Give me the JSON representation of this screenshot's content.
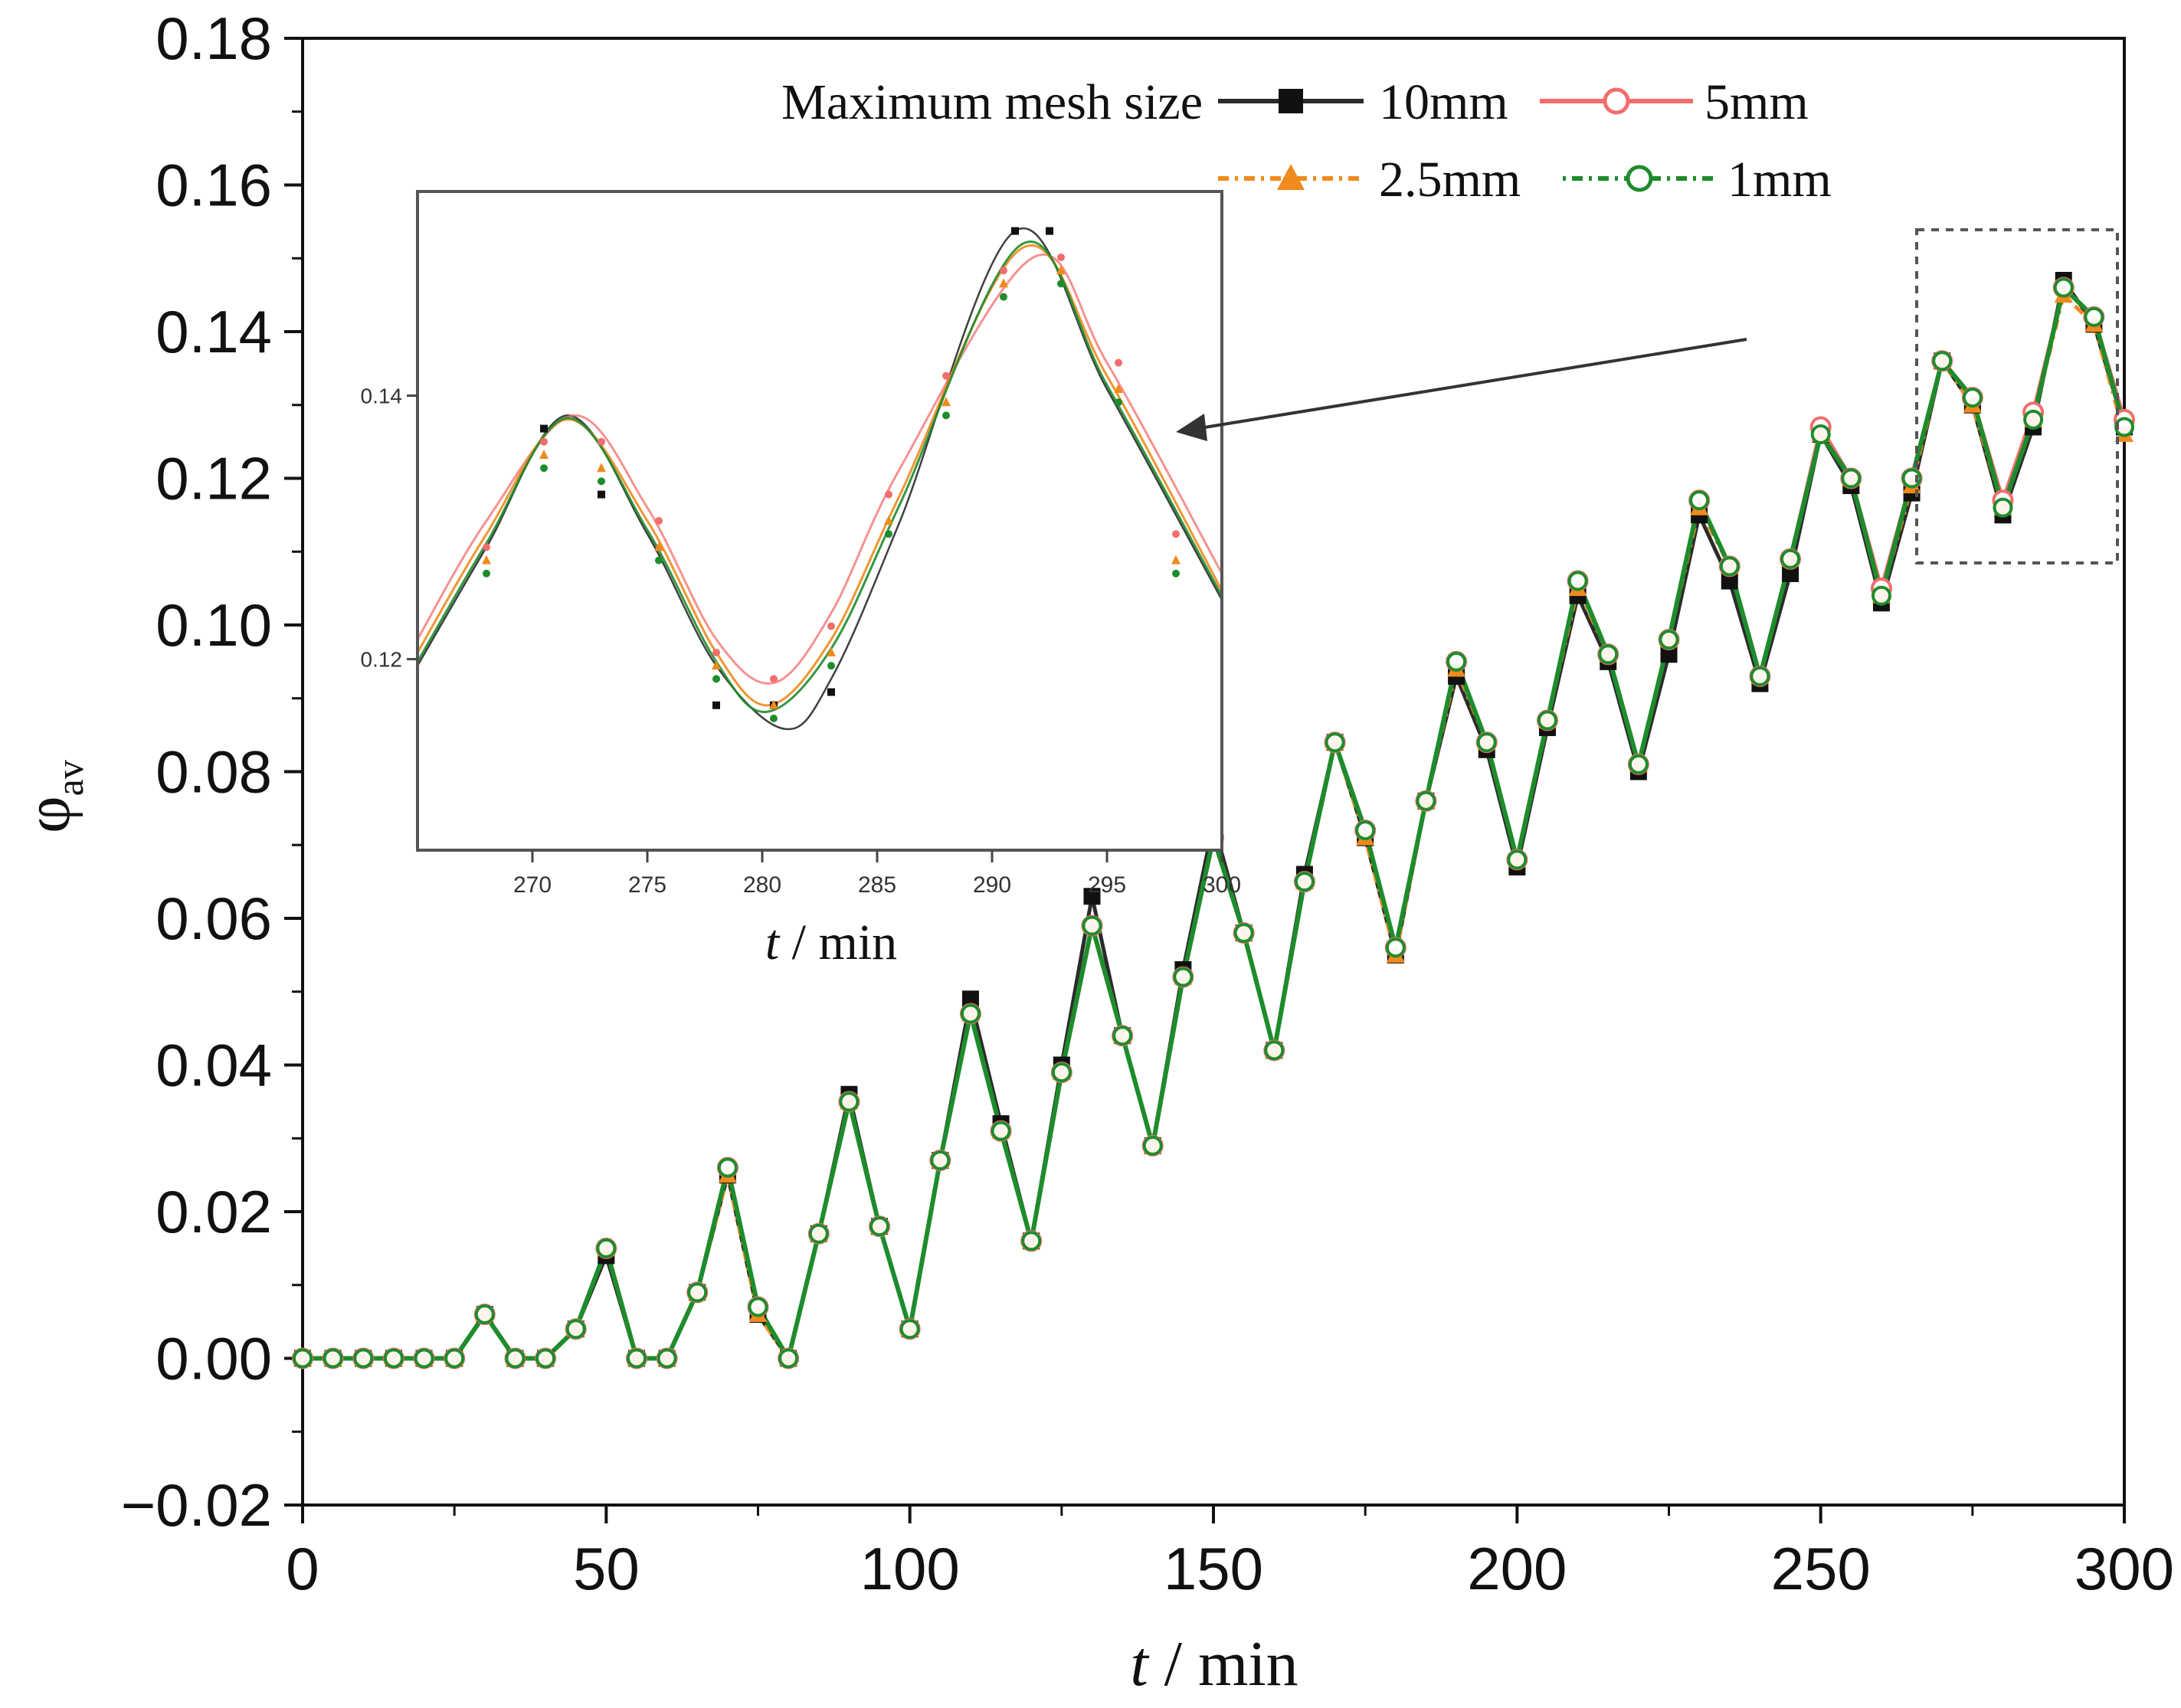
{
  "chart_data": [
    {
      "type": "line",
      "title": "",
      "xlabel_italic": "t",
      "xlabel_rest": " / min",
      "ylabel": "φ",
      "ylabel_sub": "av",
      "xlim": [
        0,
        300
      ],
      "ylim": [
        -0.02,
        0.18
      ],
      "x_ticks": [
        0,
        50,
        100,
        150,
        200,
        250,
        300
      ],
      "x_tick_labels": [
        "0",
        "50",
        "100",
        "150",
        "200",
        "250",
        "300"
      ],
      "y_ticks": [
        -0.02,
        0.0,
        0.02,
        0.04,
        0.06,
        0.08,
        0.1,
        0.12,
        0.14,
        0.16,
        0.18
      ],
      "y_tick_labels": [
        "−0.02",
        "0.00",
        "0.02",
        "0.04",
        "0.06",
        "0.08",
        "0.10",
        "0.12",
        "0.14",
        "0.16",
        "0.18"
      ],
      "legend_title": "Maximum mesh size",
      "legend_position": "top-right",
      "x": [
        0,
        5,
        10,
        15,
        20,
        25,
        30,
        35,
        40,
        45,
        50,
        55,
        60,
        65,
        70,
        75,
        80,
        85,
        90,
        95,
        100,
        105,
        110,
        115,
        120,
        125,
        130,
        135,
        140,
        145,
        150,
        155,
        160,
        165,
        170,
        175,
        180,
        185,
        190,
        195,
        200,
        205,
        210,
        215,
        220,
        225,
        230,
        235,
        240,
        245,
        250,
        255,
        260,
        265,
        270,
        275,
        280,
        285,
        290,
        295,
        300
      ],
      "series": [
        {
          "name": "10mm",
          "color": "#2b2b2b",
          "marker": "filled-square",
          "values": [
            0,
            0,
            0,
            0,
            0,
            0,
            0.006,
            0,
            0,
            0.004,
            0.014,
            0,
            0,
            0.009,
            0.025,
            0.006,
            0,
            0.017,
            0.036,
            0.018,
            0.004,
            0.027,
            0.049,
            0.032,
            0.016,
            0.04,
            0.063,
            0.044,
            0.029,
            0.053,
            0.073,
            0.058,
            0.042,
            0.066,
            0.084,
            0.071,
            0.055,
            0.076,
            0.093,
            0.083,
            0.067,
            0.086,
            0.104,
            0.095,
            0.08,
            0.096,
            0.115,
            0.106,
            0.092,
            0.107,
            0.126,
            0.119,
            0.103,
            0.118,
            0.136,
            0.13,
            0.115,
            0.127,
            0.147,
            0.141,
            0.127
          ]
        },
        {
          "name": "5mm",
          "color": "#f26d6d",
          "marker": "open-circle",
          "values": [
            0,
            0,
            0,
            0,
            0,
            0,
            0.006,
            0,
            0,
            0.004,
            0.015,
            0,
            0,
            0.009,
            0.026,
            0.007,
            0,
            0.017,
            0.035,
            0.018,
            0.004,
            0.027,
            0.047,
            0.031,
            0.016,
            0.039,
            0.059,
            0.044,
            0.029,
            0.052,
            0.071,
            0.058,
            0.042,
            0.065,
            0.084,
            0.072,
            0.056,
            0.076,
            0.095,
            0.084,
            0.068,
            0.087,
            0.106,
            0.096,
            0.081,
            0.098,
            0.117,
            0.108,
            0.093,
            0.109,
            0.127,
            0.12,
            0.105,
            0.12,
            0.136,
            0.131,
            0.117,
            0.129,
            0.146,
            0.142,
            0.128
          ]
        },
        {
          "name": "2.5mm",
          "color": "#f08a1c",
          "marker": "filled-triangle",
          "values": [
            0,
            0,
            0,
            0,
            0,
            0,
            0.006,
            0,
            0,
            0.004,
            0.015,
            0,
            0,
            0.009,
            0.025,
            0.006,
            0,
            0.017,
            0.035,
            0.018,
            0.004,
            0.027,
            0.047,
            0.031,
            0.016,
            0.039,
            0.059,
            0.044,
            0.029,
            0.052,
            0.071,
            0.058,
            0.042,
            0.065,
            0.084,
            0.071,
            0.055,
            0.076,
            0.094,
            0.084,
            0.068,
            0.087,
            0.105,
            0.096,
            0.081,
            0.098,
            0.116,
            0.108,
            0.093,
            0.109,
            0.126,
            0.12,
            0.104,
            0.119,
            0.136,
            0.13,
            0.116,
            0.128,
            0.145,
            0.141,
            0.126
          ]
        },
        {
          "name": "1mm",
          "color": "#1e8c2c",
          "marker": "open-circle",
          "values": [
            0,
            0,
            0,
            0,
            0,
            0,
            0.006,
            0,
            0,
            0.004,
            0.015,
            0,
            0,
            0.009,
            0.026,
            0.007,
            0,
            0.017,
            0.035,
            0.018,
            0.004,
            0.027,
            0.047,
            0.031,
            0.016,
            0.039,
            0.059,
            0.044,
            0.029,
            0.052,
            0.071,
            0.058,
            0.042,
            0.065,
            0.084,
            0.072,
            0.056,
            0.076,
            0.095,
            0.084,
            0.068,
            0.087,
            0.106,
            0.096,
            0.081,
            0.098,
            0.117,
            0.108,
            0.093,
            0.109,
            0.126,
            0.12,
            0.104,
            0.12,
            0.136,
            0.131,
            0.116,
            0.128,
            0.146,
            0.142,
            0.127
          ]
        }
      ],
      "annotation": "dashed box marks the region 265–300 min, 0.11–0.15, magnified in the inset"
    },
    {
      "type": "line",
      "role": "inset zoom",
      "xlabel_italic": "t",
      "xlabel_rest": " / min",
      "xlim": [
        265,
        300
      ],
      "ylim": [
        0.1055,
        0.1555
      ],
      "x_ticks": [
        270,
        275,
        280,
        285,
        290,
        295,
        300
      ],
      "x_tick_labels": [
        "270",
        "275",
        "280",
        "285",
        "290",
        "295",
        "300"
      ],
      "y_ticks": [
        0.12,
        0.14
      ],
      "y_tick_labels": [
        "0.12",
        "0.14"
      ],
      "series": [
        {
          "name": "10mm",
          "color": "#2b2b2b",
          "curve": {
            "x": [
              265,
              268,
              271.5,
              275,
              278,
              281,
              283,
              286,
              291,
              295,
              300
            ],
            "y": [
              0.1195,
              0.1285,
              0.1385,
              0.1295,
              0.1195,
              0.1147,
              0.1185,
              0.1305,
              0.1525,
              0.1405,
              0.1245
            ]
          },
          "markers": {
            "x": [
              270.5,
              273,
              278,
              280.5,
              283,
              291,
              292.5
            ],
            "y": [
              0.1375,
              0.1325,
              0.1165,
              0.1165,
              0.1175,
              0.1525,
              0.1525
            ]
          }
        },
        {
          "name": "5mm",
          "color": "#f26d6d",
          "curve": {
            "x": [
              265,
              268,
              271.8,
              275,
              278,
              280.5,
              283,
              286,
              291.8,
              295,
              300
            ],
            "y": [
              0.1215,
              0.1305,
              0.1385,
              0.1315,
              0.1215,
              0.1182,
              0.1235,
              0.1345,
              0.1505,
              0.1425,
              0.1265
            ]
          },
          "markers": {
            "x": [
              268,
              270.5,
              273,
              275.5,
              278,
              280.5,
              283,
              285.5,
              288,
              290.5,
              293,
              295.5,
              298
            ],
            "y": [
              0.1285,
              0.1365,
              0.1365,
              0.1305,
              0.1205,
              0.1185,
              0.1225,
              0.1325,
              0.1415,
              0.1495,
              0.1505,
              0.1425,
              0.1295
            ]
          }
        },
        {
          "name": "2.5mm",
          "color": "#f08a1c",
          "curve": {
            "x": [
              265,
              268,
              271.5,
              275,
              278,
              280.3,
              283,
              286,
              291.3,
              295,
              300
            ],
            "y": [
              0.1205,
              0.1295,
              0.1382,
              0.1305,
              0.1205,
              0.1165,
              0.1215,
              0.1325,
              0.1512,
              0.1415,
              0.1252
            ]
          },
          "markers": {
            "x": [
              268,
              270.5,
              273,
              275.5,
              278,
              280.5,
              283,
              285.5,
              288,
              290.5,
              293,
              295.5,
              298
            ],
            "y": [
              0.1275,
              0.1355,
              0.1345,
              0.1285,
              0.1195,
              0.1165,
              0.1205,
              0.1305,
              0.1395,
              0.1485,
              0.1495,
              0.1405,
              0.1275
            ]
          }
        },
        {
          "name": "1mm",
          "color": "#1e8c2c",
          "curve": {
            "x": [
              265,
              268,
              271.5,
              275,
              278,
              280.2,
              283,
              286,
              291.3,
              295,
              300
            ],
            "y": [
              0.1198,
              0.1288,
              0.1383,
              0.1298,
              0.1198,
              0.116,
              0.1208,
              0.1318,
              0.1515,
              0.1408,
              0.1248
            ]
          },
          "markers": {
            "x": [
              268,
              270.5,
              273,
              275.5,
              278,
              280.5,
              283,
              285.5,
              288,
              290.5,
              293,
              295.5,
              298
            ],
            "y": [
              0.1265,
              0.1345,
              0.1335,
              0.1275,
              0.1185,
              0.1155,
              0.1195,
              0.1295,
              0.1385,
              0.1475,
              0.1485,
              0.1395,
              0.1265
            ]
          }
        }
      ]
    }
  ]
}
